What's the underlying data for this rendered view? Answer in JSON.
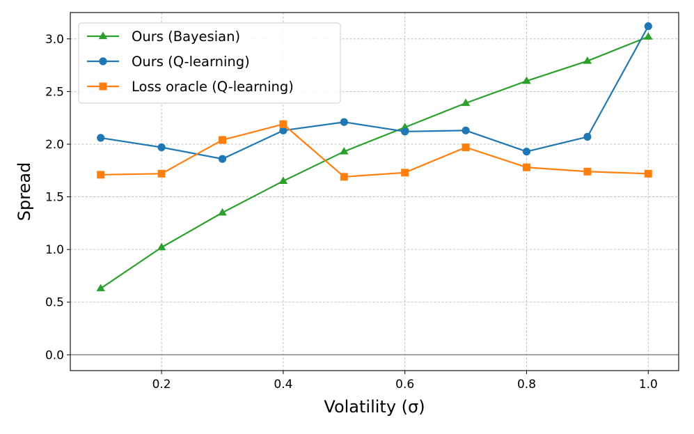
{
  "chart_data": {
    "type": "line",
    "title": "",
    "xlabel": "Volatility (σ)",
    "ylabel": "Spread",
    "xlim": [
      0.05,
      1.05
    ],
    "ylim": [
      -0.15,
      3.25
    ],
    "xticks": [
      0.2,
      0.4,
      0.6,
      0.8,
      1.0
    ],
    "xtick_labels": [
      "0.2",
      "0.4",
      "0.6",
      "0.8",
      "1.0"
    ],
    "yticks": [
      0.0,
      0.5,
      1.0,
      1.5,
      2.0,
      2.5,
      3.0
    ],
    "ytick_labels": [
      "0.0",
      "0.5",
      "1.0",
      "1.5",
      "2.0",
      "2.5",
      "3.0"
    ],
    "grid": true,
    "legend_position": "top-left",
    "reference_line": {
      "y": 0.0,
      "color": "#808080"
    },
    "x": [
      0.1,
      0.2,
      0.3,
      0.4,
      0.5,
      0.6,
      0.7,
      0.8,
      0.9,
      1.0
    ],
    "series": [
      {
        "name": "Ours (Bayesian)",
        "color": "#2ca02c",
        "marker": "triangle",
        "values": [
          0.63,
          1.02,
          1.35,
          1.65,
          1.93,
          2.16,
          2.39,
          2.6,
          2.79,
          3.02
        ]
      },
      {
        "name": "Ours (Q-learning)",
        "color": "#1f77b4",
        "marker": "circle",
        "values": [
          2.06,
          1.97,
          1.86,
          2.13,
          2.21,
          2.12,
          2.13,
          1.93,
          2.07,
          3.12
        ]
      },
      {
        "name": "Loss oracle (Q-learning)",
        "color": "#ff7f0e",
        "marker": "square",
        "values": [
          1.71,
          1.72,
          2.04,
          2.19,
          1.69,
          1.73,
          1.97,
          1.78,
          1.74,
          1.72
        ]
      }
    ]
  }
}
